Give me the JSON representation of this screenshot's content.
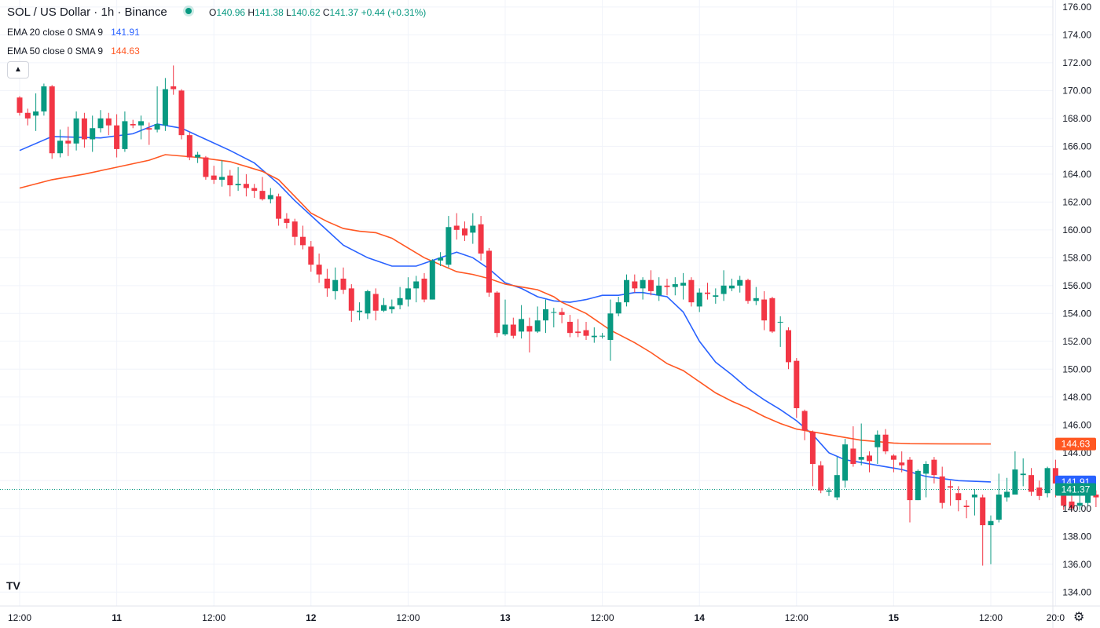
{
  "header": {
    "title": "SOL / US Dollar · 1h · Binance",
    "ohlc": {
      "o_label": "O",
      "o": "140.96",
      "h_label": "H",
      "h": "141.38",
      "l_label": "L",
      "l": "140.62",
      "c_label": "C",
      "c": "141.37",
      "change": "+0.44 (+0.31%)"
    },
    "ema20": {
      "label": "EMA 20 close 0 SMA 9",
      "value": "141.91"
    },
    "ema50": {
      "label": "EMA 50 close 0 SMA 9",
      "value": "144.63"
    },
    "collapse_icon": "chevron-up-icon",
    "logo": "TV"
  },
  "colors": {
    "up": "#089981",
    "down": "#f23645",
    "ema20": "#2962ff",
    "ema50": "#ff5722",
    "grid": "#f0f3fa",
    "axis_text": "#131722"
  },
  "chart_data": {
    "type": "candlestick",
    "title": "SOL / US Dollar · 1h · Binance",
    "ylim": [
      133,
      176.5
    ],
    "y_ticks": [
      "176.00",
      "174.00",
      "172.00",
      "170.00",
      "168.00",
      "166.00",
      "164.00",
      "162.00",
      "160.00",
      "158.00",
      "156.00",
      "154.00",
      "152.00",
      "150.00",
      "148.00",
      "146.00",
      "144.00",
      "142.00",
      "140.00",
      "138.00",
      "136.00",
      "134.00"
    ],
    "x_ticks": [
      {
        "label": "12:00",
        "bar": 0
      },
      {
        "label": "11",
        "bar": 12
      },
      {
        "label": "12:00",
        "bar": 24
      },
      {
        "label": "12",
        "bar": 36
      },
      {
        "label": "12:00",
        "bar": 48
      },
      {
        "label": "13",
        "bar": 60
      },
      {
        "label": "12:00",
        "bar": 72
      },
      {
        "label": "14",
        "bar": 84
      },
      {
        "label": "12:00",
        "bar": 96
      },
      {
        "label": "15",
        "bar": 108
      },
      {
        "label": "12:00",
        "bar": 120
      },
      {
        "label": "20:0",
        "bar": 128
      }
    ],
    "candles": [
      [
        169.5,
        168.4,
        169.6,
        168.2
      ],
      [
        168.4,
        168.0,
        168.7,
        167.5
      ],
      [
        168.2,
        168.5,
        169.8,
        167.1
      ],
      [
        168.5,
        170.3,
        170.5,
        168.2
      ],
      [
        170.3,
        165.5,
        170.4,
        165.1
      ],
      [
        165.5,
        166.4,
        167.2,
        165.2
      ],
      [
        166.4,
        166.2,
        167.4,
        165.3
      ],
      [
        166.2,
        168.0,
        168.5,
        165.7
      ],
      [
        168.0,
        166.5,
        168.4,
        165.9
      ],
      [
        166.5,
        167.3,
        168.2,
        165.6
      ],
      [
        167.3,
        168.0,
        168.6,
        167.0
      ],
      [
        168.0,
        167.5,
        168.4,
        166.8
      ],
      [
        167.5,
        165.8,
        168.3,
        165.2
      ],
      [
        165.8,
        167.8,
        168.5,
        165.6
      ],
      [
        167.6,
        167.5,
        167.9,
        167.3
      ],
      [
        167.5,
        167.8,
        168.2,
        166.5
      ],
      [
        167.3,
        167.2,
        167.7,
        166.1
      ],
      [
        167.2,
        167.6,
        170.3,
        167.0
      ],
      [
        167.5,
        170.1,
        170.9,
        167.1
      ],
      [
        170.3,
        170.1,
        171.8,
        169.7
      ],
      [
        170.0,
        166.8,
        170.1,
        166.5
      ],
      [
        166.8,
        165.2,
        167.0,
        165.0
      ],
      [
        165.2,
        165.4,
        165.6,
        164.8
      ],
      [
        165.2,
        163.8,
        165.3,
        163.6
      ],
      [
        163.9,
        163.6,
        164.6,
        163.3
      ],
      [
        163.6,
        163.8,
        165.0,
        163.1
      ],
      [
        163.9,
        163.2,
        164.3,
        162.4
      ],
      [
        163.2,
        163.3,
        164.5,
        162.8
      ],
      [
        163.3,
        163.0,
        164.0,
        162.4
      ],
      [
        163.0,
        162.8,
        163.3,
        162.3
      ],
      [
        162.8,
        162.2,
        163.8,
        162.1
      ],
      [
        162.2,
        162.5,
        163.0,
        161.9
      ],
      [
        162.4,
        160.8,
        162.6,
        160.3
      ],
      [
        160.8,
        160.5,
        161.2,
        160.1
      ],
      [
        160.6,
        159.5,
        160.8,
        158.9
      ],
      [
        159.5,
        158.9,
        160.3,
        158.6
      ],
      [
        158.8,
        157.5,
        159.2,
        157.0
      ],
      [
        157.5,
        156.8,
        158.3,
        156.2
      ],
      [
        156.5,
        155.8,
        157.2,
        155.2
      ],
      [
        155.6,
        156.4,
        157.3,
        155.0
      ],
      [
        156.5,
        155.7,
        157.3,
        155.4
      ],
      [
        155.8,
        154.2,
        156.1,
        153.4
      ],
      [
        154.1,
        154.2,
        154.8,
        153.5
      ],
      [
        154.0,
        155.6,
        155.7,
        153.6
      ],
      [
        155.4,
        154.2,
        155.8,
        153.5
      ],
      [
        154.2,
        154.6,
        155.1,
        154.1
      ],
      [
        154.3,
        154.5,
        155.0,
        154.0
      ],
      [
        154.6,
        155.1,
        155.9,
        154.3
      ],
      [
        155.0,
        155.8,
        156.6,
        154.5
      ],
      [
        155.8,
        156.3,
        156.7,
        154.8
      ],
      [
        156.5,
        155.0,
        156.9,
        154.8
      ],
      [
        155.0,
        157.8,
        157.9,
        155.0
      ],
      [
        157.8,
        158.0,
        158.4,
        157.4
      ],
      [
        157.5,
        160.2,
        161.0,
        157.3
      ],
      [
        160.3,
        160.0,
        161.2,
        159.3
      ],
      [
        160.1,
        159.6,
        160.6,
        159.2
      ],
      [
        159.8,
        160.3,
        161.2,
        159.0
      ],
      [
        160.4,
        158.3,
        161.0,
        157.8
      ],
      [
        158.5,
        155.5,
        158.7,
        155.2
      ],
      [
        155.5,
        152.6,
        155.6,
        152.3
      ],
      [
        152.5,
        153.2,
        155.0,
        152.4
      ],
      [
        153.2,
        152.4,
        153.7,
        152.2
      ],
      [
        152.7,
        153.6,
        154.6,
        152.2
      ],
      [
        153.1,
        152.7,
        153.7,
        151.2
      ],
      [
        152.7,
        153.5,
        154.5,
        152.6
      ],
      [
        153.5,
        154.3,
        155.0,
        152.6
      ],
      [
        154.1,
        154.1,
        154.4,
        153.0
      ],
      [
        154.1,
        153.9,
        154.4,
        153.3
      ],
      [
        153.4,
        152.6,
        153.9,
        152.3
      ],
      [
        152.7,
        152.6,
        153.6,
        152.3
      ],
      [
        152.8,
        152.4,
        153.4,
        152.1
      ],
      [
        152.3,
        152.4,
        153.0,
        151.9
      ],
      [
        152.4,
        152.4,
        152.6,
        152.2
      ],
      [
        152.1,
        154.0,
        155.0,
        150.6
      ],
      [
        154.0,
        154.8,
        155.2,
        153.8
      ],
      [
        154.8,
        156.4,
        156.8,
        154.5
      ],
      [
        156.3,
        155.8,
        156.8,
        155.5
      ],
      [
        155.8,
        156.4,
        156.6,
        155.0
      ],
      [
        156.4,
        155.6,
        157.1,
        155.3
      ],
      [
        155.3,
        156.0,
        156.6,
        154.9
      ],
      [
        156.0,
        155.9,
        156.5,
        155.3
      ],
      [
        155.9,
        156.1,
        156.6,
        155.3
      ],
      [
        156.0,
        156.2,
        156.9,
        155.0
      ],
      [
        156.4,
        154.8,
        156.6,
        154.5
      ],
      [
        154.5,
        155.5,
        155.8,
        154.1
      ],
      [
        155.5,
        155.4,
        156.2,
        155.0
      ],
      [
        155.2,
        155.3,
        155.8,
        154.7
      ],
      [
        155.4,
        156.0,
        157.1,
        154.9
      ],
      [
        155.8,
        156.0,
        156.5,
        155.6
      ],
      [
        156.0,
        156.4,
        156.7,
        155.5
      ],
      [
        156.4,
        154.9,
        156.5,
        154.7
      ],
      [
        154.9,
        155.1,
        155.9,
        154.6
      ],
      [
        155.0,
        153.5,
        155.6,
        152.8
      ],
      [
        155.1,
        152.7,
        155.2,
        152.6
      ],
      [
        153.4,
        153.4,
        153.8,
        151.6
      ],
      [
        152.8,
        150.5,
        153.0,
        150.0
      ],
      [
        150.6,
        147.2,
        150.8,
        146.5
      ],
      [
        147.0,
        145.6,
        147.1,
        144.9
      ],
      [
        145.5,
        143.2,
        145.6,
        141.6
      ],
      [
        143.1,
        141.3,
        143.4,
        141.1
      ],
      [
        141.2,
        141.3,
        141.5,
        140.9
      ],
      [
        140.8,
        142.4,
        143.7,
        140.6
      ],
      [
        142.0,
        144.6,
        145.0,
        141.5
      ],
      [
        144.3,
        143.2,
        145.9,
        143.0
      ],
      [
        143.5,
        143.7,
        146.1,
        143.1
      ],
      [
        143.8,
        143.4,
        144.1,
        142.6
      ],
      [
        144.4,
        145.3,
        145.6,
        143.2
      ],
      [
        145.3,
        144.1,
        145.7,
        143.9
      ],
      [
        143.8,
        143.5,
        143.9,
        142.6
      ],
      [
        143.3,
        143.1,
        144.1,
        142.6
      ],
      [
        143.5,
        140.6,
        143.7,
        139.0
      ],
      [
        140.6,
        142.7,
        142.8,
        140.6
      ],
      [
        142.5,
        143.2,
        143.4,
        140.8
      ],
      [
        143.5,
        142.4,
        143.7,
        141.8
      ],
      [
        142.3,
        140.4,
        143.0,
        140.0
      ],
      [
        141.6,
        141.5,
        142.0,
        140.2
      ],
      [
        141.1,
        140.6,
        141.6,
        139.8
      ],
      [
        140.2,
        140.1,
        140.6,
        139.3
      ],
      [
        140.8,
        141.0,
        141.4,
        139.5
      ],
      [
        140.8,
        138.8,
        141.0,
        135.9
      ],
      [
        138.8,
        139.1,
        139.5,
        136.0
      ],
      [
        139.2,
        141.0,
        142.5,
        139.0
      ],
      [
        140.8,
        141.2,
        142.2,
        140.5
      ],
      [
        141.0,
        142.8,
        144.1,
        141.2
      ],
      [
        142.4,
        142.5,
        143.6,
        141.6
      ],
      [
        142.4,
        141.2,
        142.9,
        140.9
      ],
      [
        141.5,
        140.9,
        142.0,
        140.6
      ],
      [
        141.1,
        142.9,
        143.0,
        140.8
      ],
      [
        142.9,
        141.8,
        143.5,
        140.8
      ],
      [
        141.9,
        140.2,
        142.1,
        139.9
      ],
      [
        140.5,
        140.0,
        141.2,
        139.8
      ],
      [
        140.2,
        140.4,
        141.3,
        139.9
      ],
      [
        140.4,
        141.0,
        141.1,
        140.2
      ],
      [
        141.0,
        140.8,
        141.3,
        140.1
      ],
      [
        140.6,
        138.8,
        141.0,
        137.3
      ],
      [
        138.8,
        140.5,
        140.9,
        138.6
      ],
      [
        140.4,
        141.3,
        142.4,
        140.0
      ],
      [
        141.2,
        142.6,
        143.1,
        141.0
      ],
      [
        142.7,
        142.7,
        143.2,
        142.2
      ],
      [
        142.8,
        142.5,
        143.2,
        142.0
      ],
      [
        142.5,
        142.3,
        143.0,
        142.1
      ],
      [
        142.4,
        142.7,
        143.3,
        142.1
      ],
      [
        142.6,
        142.7,
        143.6,
        142.3
      ],
      [
        142.6,
        142.6,
        143.3,
        142.2
      ],
      [
        142.8,
        140.8,
        142.9,
        140.6
      ],
      [
        140.9,
        141.0,
        141.4,
        140.7
      ],
      [
        140.96,
        141.37,
        141.38,
        140.62
      ]
    ],
    "series": [
      {
        "name": "EMA 20 close 0 SMA 9",
        "color": "#2962ff",
        "points": [
          [
            0,
            165.7
          ],
          [
            4,
            166.7
          ],
          [
            10,
            166.6
          ],
          [
            14,
            166.9
          ],
          [
            17,
            167.6
          ],
          [
            20,
            167.3
          ],
          [
            23,
            166.5
          ],
          [
            26,
            165.7
          ],
          [
            29,
            164.8
          ],
          [
            32,
            163.3
          ],
          [
            34,
            162.1
          ],
          [
            37,
            160.5
          ],
          [
            40,
            158.9
          ],
          [
            43,
            158.0
          ],
          [
            46,
            157.4
          ],
          [
            49,
            157.4
          ],
          [
            52,
            158.0
          ],
          [
            54,
            158.4
          ],
          [
            56,
            158.0
          ],
          [
            58,
            157.2
          ],
          [
            60,
            156.2
          ],
          [
            62,
            155.8
          ],
          [
            64,
            155.2
          ],
          [
            66,
            154.9
          ],
          [
            68,
            154.8
          ],
          [
            70,
            155.0
          ],
          [
            72,
            155.3
          ],
          [
            74,
            155.3
          ],
          [
            76,
            155.5
          ],
          [
            77,
            155.5
          ],
          [
            80,
            155.2
          ],
          [
            82,
            154.1
          ],
          [
            84,
            152.0
          ],
          [
            86,
            150.5
          ],
          [
            88,
            149.6
          ],
          [
            90,
            148.6
          ],
          [
            92,
            147.8
          ],
          [
            94,
            147.1
          ],
          [
            96,
            146.3
          ],
          [
            98,
            145.3
          ],
          [
            100,
            144.0
          ],
          [
            102,
            143.5
          ],
          [
            104,
            143.3
          ],
          [
            106,
            143.1
          ],
          [
            108,
            142.9
          ],
          [
            109,
            142.8
          ],
          [
            112,
            142.3
          ],
          [
            116,
            142.0
          ],
          [
            120,
            141.91
          ]
        ]
      },
      {
        "name": "EMA 50 close 0 SMA 9",
        "color": "#ff5722",
        "points": [
          [
            0,
            163.0
          ],
          [
            4,
            163.6
          ],
          [
            8,
            164.0
          ],
          [
            12,
            164.5
          ],
          [
            16,
            165.0
          ],
          [
            18,
            165.4
          ],
          [
            22,
            165.2
          ],
          [
            26,
            164.9
          ],
          [
            30,
            164.2
          ],
          [
            32,
            163.6
          ],
          [
            34,
            162.4
          ],
          [
            36,
            161.2
          ],
          [
            38,
            160.6
          ],
          [
            40,
            160.1
          ],
          [
            42,
            159.9
          ],
          [
            44,
            159.8
          ],
          [
            46,
            159.4
          ],
          [
            48,
            158.7
          ],
          [
            50,
            158.0
          ],
          [
            52,
            157.5
          ],
          [
            54,
            157.0
          ],
          [
            56,
            156.8
          ],
          [
            58,
            156.5
          ],
          [
            60,
            156.1
          ],
          [
            62,
            155.9
          ],
          [
            64,
            155.7
          ],
          [
            66,
            155.2
          ],
          [
            67,
            154.8
          ],
          [
            70,
            154.0
          ],
          [
            73,
            152.8
          ],
          [
            76,
            151.9
          ],
          [
            78,
            151.2
          ],
          [
            80,
            150.4
          ],
          [
            82,
            149.9
          ],
          [
            84,
            149.1
          ],
          [
            86,
            148.3
          ],
          [
            88,
            147.7
          ],
          [
            90,
            147.2
          ],
          [
            92,
            146.6
          ],
          [
            94,
            146.1
          ],
          [
            96,
            145.7
          ],
          [
            98,
            145.5
          ],
          [
            100,
            145.3
          ],
          [
            102,
            145.1
          ],
          [
            104,
            144.9
          ],
          [
            106,
            144.8
          ],
          [
            108,
            144.7
          ],
          [
            110,
            144.65
          ],
          [
            114,
            144.64
          ],
          [
            120,
            144.63
          ]
        ]
      }
    ],
    "price_labels": [
      {
        "value": "144.63",
        "price": 144.63,
        "color": "#ff5722"
      },
      {
        "value": "141.91",
        "price": 141.91,
        "color": "#2962ff"
      },
      {
        "value": "141.37",
        "price": 141.37,
        "color": "#089981"
      }
    ],
    "last_price_line": 141.37
  }
}
